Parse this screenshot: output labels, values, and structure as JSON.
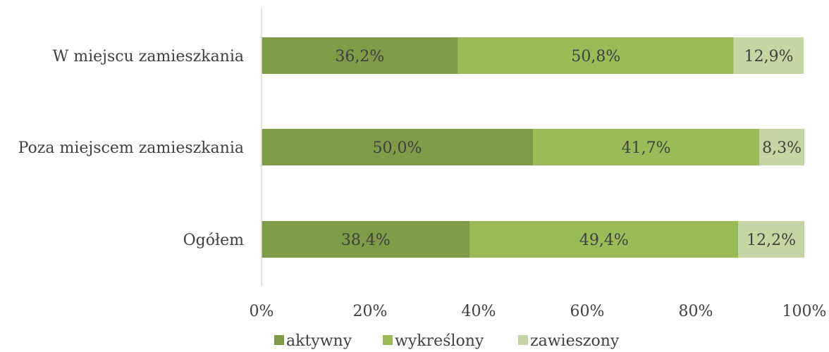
{
  "chart_data": {
    "type": "bar",
    "orientation": "horizontal",
    "stacked": "percent",
    "categories": [
      "W miejscu zamieszkania",
      "Poza miejscem zamieszkania",
      "Ogółem"
    ],
    "series": [
      {
        "name": "aktywny",
        "color": "#7f9b48",
        "values": [
          36.2,
          50.0,
          38.4
        ],
        "labels": [
          "36,2%",
          "50,0%",
          "38,4%"
        ]
      },
      {
        "name": "wykreślony",
        "color": "#9bbb59",
        "values": [
          50.8,
          41.7,
          49.4
        ],
        "labels": [
          "50,8%",
          "41,7%",
          "49,4%"
        ]
      },
      {
        "name": "zawieszony",
        "color": "#c5d6a4",
        "values": [
          12.9,
          8.3,
          12.2
        ],
        "labels": [
          "12,9%",
          "8,3%",
          "12,2%"
        ]
      }
    ],
    "xlim": [
      0,
      100
    ],
    "xticks": [
      "0%",
      "20%",
      "40%",
      "60%",
      "80%",
      "100%"
    ],
    "grid": false,
    "legend_position": "bottom"
  }
}
